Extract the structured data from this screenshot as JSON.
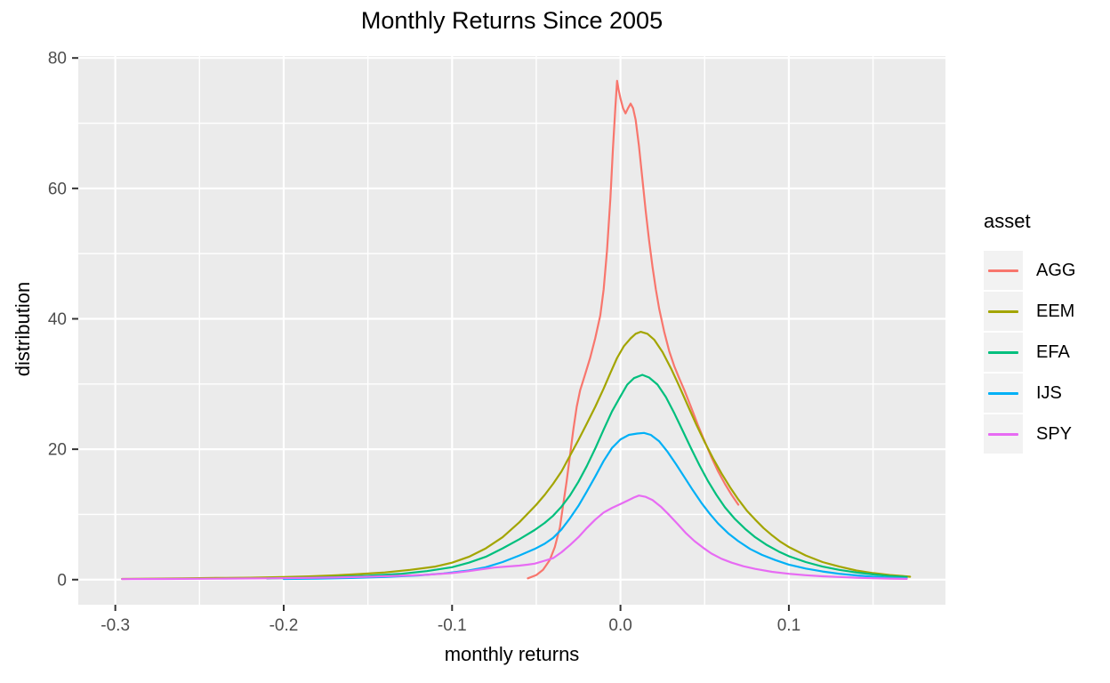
{
  "chart_data": {
    "type": "line",
    "subtype": "kernel-density",
    "title": "Monthly Returns Since 2005",
    "xlabel": "monthly returns",
    "ylabel": "distribution",
    "legend_title": "asset",
    "legend_position": "right",
    "grid": true,
    "panel_bg": "#EBEBEB",
    "grid_color": "#FFFFFF",
    "legend_key_bg": "#F2F2F2",
    "tick_label_color": "#4D4D4D",
    "tick_mark_color": "#333333",
    "xlim": [
      -0.322,
      0.193
    ],
    "ylim": [
      -3.85,
      80.3
    ],
    "x_ticks": [
      {
        "v": -0.3,
        "label": "-0.3"
      },
      {
        "v": -0.2,
        "label": "-0.2"
      },
      {
        "v": -0.1,
        "label": "-0.1"
      },
      {
        "v": 0.0,
        "label": "0.0"
      },
      {
        "v": 0.1,
        "label": "0.1"
      }
    ],
    "y_ticks": [
      {
        "v": 0,
        "label": "0"
      },
      {
        "v": 20,
        "label": "20"
      },
      {
        "v": 40,
        "label": "40"
      },
      {
        "v": 60,
        "label": "60"
      },
      {
        "v": 80,
        "label": "80"
      }
    ],
    "x_minor_ticks": [
      -0.25,
      -0.15,
      -0.05,
      0.05,
      0.15
    ],
    "y_minor_ticks": [
      10,
      30,
      50,
      70
    ],
    "series": [
      {
        "name": "AGG",
        "color": "#F8766D",
        "peak": {
          "x": -0.002,
          "y": 76.5
        },
        "points": [
          [
            -0.055,
            0.2
          ],
          [
            -0.05,
            0.7
          ],
          [
            -0.046,
            1.5
          ],
          [
            -0.042,
            3
          ],
          [
            -0.039,
            5
          ],
          [
            -0.036,
            8
          ],
          [
            -0.034,
            11.5
          ],
          [
            -0.032,
            15
          ],
          [
            -0.03,
            19
          ],
          [
            -0.028,
            23
          ],
          [
            -0.026,
            26.5
          ],
          [
            -0.024,
            29
          ],
          [
            -0.021,
            31.5
          ],
          [
            -0.018,
            34
          ],
          [
            -0.015,
            37
          ],
          [
            -0.012,
            40.5
          ],
          [
            -0.01,
            44.5
          ],
          [
            -0.008,
            50.5
          ],
          [
            -0.006,
            58.5
          ],
          [
            -0.0045,
            66
          ],
          [
            -0.003,
            72.5
          ],
          [
            -0.002,
            76.5
          ],
          [
            -0.001,
            75
          ],
          [
            0,
            73.8
          ],
          [
            0.0015,
            72.3
          ],
          [
            0.003,
            71.5
          ],
          [
            0.0045,
            72.3
          ],
          [
            0.006,
            73
          ],
          [
            0.0075,
            72.3
          ],
          [
            0.009,
            70.5
          ],
          [
            0.011,
            66.5
          ],
          [
            0.013,
            61.5
          ],
          [
            0.015,
            56.5
          ],
          [
            0.017,
            52
          ],
          [
            0.019,
            48
          ],
          [
            0.021,
            44.5
          ],
          [
            0.023,
            41.5
          ],
          [
            0.026,
            38
          ],
          [
            0.029,
            35
          ],
          [
            0.032,
            32.7
          ],
          [
            0.035,
            30.8
          ],
          [
            0.038,
            29
          ],
          [
            0.042,
            26.4
          ],
          [
            0.046,
            23.7
          ],
          [
            0.05,
            21.2
          ],
          [
            0.054,
            18.8
          ],
          [
            0.058,
            16.6
          ],
          [
            0.062,
            14.7
          ],
          [
            0.066,
            13
          ],
          [
            0.07,
            11.5
          ]
        ]
      },
      {
        "name": "EEM",
        "color": "#A3A500",
        "peak": {
          "x": 0.012,
          "y": 38.0
        },
        "points": [
          [
            -0.296,
            0.1
          ],
          [
            -0.28,
            0.15
          ],
          [
            -0.26,
            0.2
          ],
          [
            -0.24,
            0.25
          ],
          [
            -0.22,
            0.3
          ],
          [
            -0.2,
            0.4
          ],
          [
            -0.185,
            0.5
          ],
          [
            -0.17,
            0.65
          ],
          [
            -0.155,
            0.85
          ],
          [
            -0.14,
            1.1
          ],
          [
            -0.125,
            1.5
          ],
          [
            -0.11,
            2
          ],
          [
            -0.1,
            2.6
          ],
          [
            -0.09,
            3.5
          ],
          [
            -0.08,
            4.8
          ],
          [
            -0.07,
            6.5
          ],
          [
            -0.06,
            8.8
          ],
          [
            -0.05,
            11.5
          ],
          [
            -0.045,
            13
          ],
          [
            -0.04,
            14.7
          ],
          [
            -0.035,
            16.6
          ],
          [
            -0.03,
            19
          ],
          [
            -0.025,
            21.4
          ],
          [
            -0.02,
            23.9
          ],
          [
            -0.015,
            26.5
          ],
          [
            -0.01,
            29.3
          ],
          [
            -0.006,
            31.7
          ],
          [
            -0.002,
            34
          ],
          [
            0.002,
            35.8
          ],
          [
            0.006,
            37
          ],
          [
            0.009,
            37.7
          ],
          [
            0.012,
            38
          ],
          [
            0.016,
            37.7
          ],
          [
            0.02,
            36.8
          ],
          [
            0.025,
            34.9
          ],
          [
            0.03,
            32.4
          ],
          [
            0.035,
            29.6
          ],
          [
            0.04,
            26.7
          ],
          [
            0.045,
            23.8
          ],
          [
            0.05,
            21.1
          ],
          [
            0.055,
            18.6
          ],
          [
            0.06,
            16.3
          ],
          [
            0.065,
            14.2
          ],
          [
            0.07,
            12.3
          ],
          [
            0.075,
            10.6
          ],
          [
            0.08,
            9.2
          ],
          [
            0.085,
            7.9
          ],
          [
            0.09,
            6.8
          ],
          [
            0.095,
            5.8
          ],
          [
            0.1,
            5
          ],
          [
            0.11,
            3.7
          ],
          [
            0.12,
            2.7
          ],
          [
            0.13,
            2
          ],
          [
            0.14,
            1.4
          ],
          [
            0.15,
            1
          ],
          [
            0.16,
            0.7
          ],
          [
            0.17,
            0.5
          ],
          [
            0.172,
            0.45
          ]
        ]
      },
      {
        "name": "EFA",
        "color": "#00BF7D",
        "peak": {
          "x": 0.013,
          "y": 31.4
        },
        "points": [
          [
            -0.21,
            0.18
          ],
          [
            -0.19,
            0.27
          ],
          [
            -0.17,
            0.4
          ],
          [
            -0.15,
            0.6
          ],
          [
            -0.13,
            0.9
          ],
          [
            -0.115,
            1.3
          ],
          [
            -0.1,
            1.9
          ],
          [
            -0.09,
            2.6
          ],
          [
            -0.08,
            3.5
          ],
          [
            -0.07,
            4.8
          ],
          [
            -0.06,
            6.2
          ],
          [
            -0.051,
            7.6
          ],
          [
            -0.045,
            8.7
          ],
          [
            -0.04,
            9.8
          ],
          [
            -0.035,
            11.2
          ],
          [
            -0.03,
            12.9
          ],
          [
            -0.025,
            15
          ],
          [
            -0.02,
            17.4
          ],
          [
            -0.015,
            20.1
          ],
          [
            -0.01,
            23
          ],
          [
            -0.005,
            25.8
          ],
          [
            0,
            28.1
          ],
          [
            0.004,
            29.9
          ],
          [
            0.008,
            30.9
          ],
          [
            0.013,
            31.4
          ],
          [
            0.017,
            31
          ],
          [
            0.022,
            29.9
          ],
          [
            0.027,
            28
          ],
          [
            0.032,
            25.5
          ],
          [
            0.037,
            22.8
          ],
          [
            0.042,
            20.1
          ],
          [
            0.047,
            17.5
          ],
          [
            0.052,
            15.1
          ],
          [
            0.057,
            13
          ],
          [
            0.062,
            11.1
          ],
          [
            0.068,
            9.3
          ],
          [
            0.074,
            7.8
          ],
          [
            0.08,
            6.5
          ],
          [
            0.087,
            5.3
          ],
          [
            0.094,
            4.3
          ],
          [
            0.1,
            3.6
          ],
          [
            0.11,
            2.7
          ],
          [
            0.12,
            2
          ],
          [
            0.13,
            1.5
          ],
          [
            0.14,
            1.1
          ],
          [
            0.15,
            0.8
          ],
          [
            0.16,
            0.55
          ],
          [
            0.17,
            0.4
          ]
        ]
      },
      {
        "name": "IJS",
        "color": "#00B0F6",
        "peak": {
          "x": 0.014,
          "y": 22.5
        },
        "points": [
          [
            -0.2,
            0.1
          ],
          [
            -0.18,
            0.15
          ],
          [
            -0.16,
            0.25
          ],
          [
            -0.14,
            0.4
          ],
          [
            -0.12,
            0.65
          ],
          [
            -0.105,
            0.95
          ],
          [
            -0.09,
            1.4
          ],
          [
            -0.08,
            1.9
          ],
          [
            -0.07,
            2.7
          ],
          [
            -0.06,
            3.7
          ],
          [
            -0.051,
            4.7
          ],
          [
            -0.045,
            5.5
          ],
          [
            -0.04,
            6.4
          ],
          [
            -0.035,
            7.7
          ],
          [
            -0.03,
            9.4
          ],
          [
            -0.025,
            11.3
          ],
          [
            -0.02,
            13.5
          ],
          [
            -0.015,
            15.8
          ],
          [
            -0.01,
            18.2
          ],
          [
            -0.005,
            20.2
          ],
          [
            0,
            21.5
          ],
          [
            0.005,
            22.2
          ],
          [
            0.01,
            22.4
          ],
          [
            0.014,
            22.5
          ],
          [
            0.018,
            22.2
          ],
          [
            0.023,
            21.2
          ],
          [
            0.028,
            19.6
          ],
          [
            0.033,
            17.7
          ],
          [
            0.038,
            15.7
          ],
          [
            0.043,
            13.7
          ],
          [
            0.048,
            11.8
          ],
          [
            0.053,
            10.1
          ],
          [
            0.058,
            8.6
          ],
          [
            0.064,
            7.1
          ],
          [
            0.07,
            5.9
          ],
          [
            0.077,
            4.7
          ],
          [
            0.084,
            3.8
          ],
          [
            0.092,
            3
          ],
          [
            0.1,
            2.3
          ],
          [
            0.11,
            1.7
          ],
          [
            0.12,
            1.25
          ],
          [
            0.13,
            0.9
          ],
          [
            0.14,
            0.65
          ],
          [
            0.15,
            0.45
          ],
          [
            0.16,
            0.3
          ],
          [
            0.17,
            0.2
          ]
        ]
      },
      {
        "name": "SPY",
        "color": "#E76BF3",
        "peak": {
          "x": 0.011,
          "y": 12.9
        },
        "points": [
          [
            -0.296,
            0.08
          ],
          [
            -0.27,
            0.1
          ],
          [
            -0.24,
            0.14
          ],
          [
            -0.21,
            0.2
          ],
          [
            -0.19,
            0.25
          ],
          [
            -0.17,
            0.33
          ],
          [
            -0.15,
            0.45
          ],
          [
            -0.13,
            0.6
          ],
          [
            -0.115,
            0.75
          ],
          [
            -0.1,
            1
          ],
          [
            -0.09,
            1.3
          ],
          [
            -0.082,
            1.6
          ],
          [
            -0.075,
            1.85
          ],
          [
            -0.068,
            2
          ],
          [
            -0.06,
            2.15
          ],
          [
            -0.055,
            2.3
          ],
          [
            -0.051,
            2.45
          ],
          [
            -0.045,
            2.9
          ],
          [
            -0.04,
            3.3
          ],
          [
            -0.035,
            4.2
          ],
          [
            -0.03,
            5.3
          ],
          [
            -0.025,
            6.5
          ],
          [
            -0.02,
            7.9
          ],
          [
            -0.015,
            9.2
          ],
          [
            -0.01,
            10.3
          ],
          [
            -0.005,
            11
          ],
          [
            0,
            11.6
          ],
          [
            0.004,
            12.1
          ],
          [
            0.008,
            12.6
          ],
          [
            0.011,
            12.9
          ],
          [
            0.015,
            12.7
          ],
          [
            0.019,
            12.2
          ],
          [
            0.024,
            11.2
          ],
          [
            0.029,
            9.9
          ],
          [
            0.034,
            8.5
          ],
          [
            0.039,
            7.1
          ],
          [
            0.044,
            5.9
          ],
          [
            0.049,
            4.9
          ],
          [
            0.054,
            4
          ],
          [
            0.06,
            3.2
          ],
          [
            0.066,
            2.6
          ],
          [
            0.073,
            2.05
          ],
          [
            0.08,
            1.65
          ],
          [
            0.09,
            1.2
          ],
          [
            0.1,
            0.9
          ],
          [
            0.11,
            0.68
          ],
          [
            0.12,
            0.52
          ],
          [
            0.13,
            0.4
          ],
          [
            0.14,
            0.3
          ],
          [
            0.15,
            0.22
          ],
          [
            0.16,
            0.16
          ],
          [
            0.17,
            0.12
          ]
        ]
      }
    ]
  }
}
